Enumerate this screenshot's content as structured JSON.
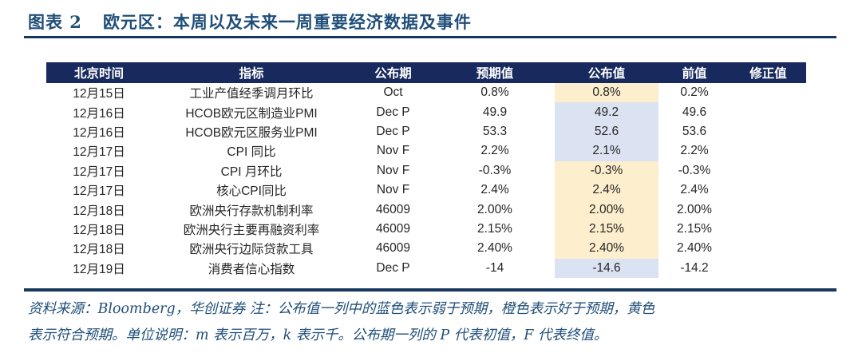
{
  "title": {
    "chart_label": "图表 2",
    "text": "欧元区：本周以及未来一周重要经济数据及事件"
  },
  "colors": {
    "header_bg": "#182a5d",
    "rule": "#17375e",
    "title_text": "#1f4e79",
    "footnote_text": "#1f4e79",
    "highlight_meets_expectation_yellow": "#fdeecd",
    "highlight_below_expectation_blue": "#dbe2f1",
    "cell_text": "#262626"
  },
  "table": {
    "columns": [
      "北京时间",
      "指标",
      "公布期",
      "预期值",
      "公布值",
      "前值",
      "修正值"
    ],
    "rows": [
      {
        "date": "12月15日",
        "indicator": "工业产值经季调月环比",
        "period": "Oct",
        "expected": "0.8%",
        "actual": "0.8%",
        "actual_highlight": "yellow",
        "previous": "0.2%",
        "revised": ""
      },
      {
        "date": "12月16日",
        "indicator": "HCOB欧元区制造业PMI",
        "period": "Dec P",
        "expected": "49.9",
        "actual": "49.2",
        "actual_highlight": "blue",
        "previous": "49.6",
        "revised": ""
      },
      {
        "date": "12月16日",
        "indicator": "HCOB欧元区服务业PMI",
        "period": "Dec P",
        "expected": "53.3",
        "actual": "52.6",
        "actual_highlight": "blue",
        "previous": "53.6",
        "revised": ""
      },
      {
        "date": "12月17日",
        "indicator": "CPI 同比",
        "period": "Nov F",
        "expected": "2.2%",
        "actual": "2.1%",
        "actual_highlight": "blue",
        "previous": "2.2%",
        "revised": ""
      },
      {
        "date": "12月17日",
        "indicator": "CPI 月环比",
        "period": "Nov F",
        "expected": "-0.3%",
        "actual": "-0.3%",
        "actual_highlight": "yellow",
        "previous": "-0.3%",
        "revised": ""
      },
      {
        "date": "12月17日",
        "indicator": "核心CPI同比",
        "period": "Nov F",
        "expected": "2.4%",
        "actual": "2.4%",
        "actual_highlight": "yellow",
        "previous": "2.4%",
        "revised": ""
      },
      {
        "date": "12月18日",
        "indicator": "欧洲央行存款机制利率",
        "period": "46009",
        "expected": "2.00%",
        "actual": "2.00%",
        "actual_highlight": "yellow",
        "previous": "2.00%",
        "revised": ""
      },
      {
        "date": "12月18日",
        "indicator": "欧洲央行主要再融资利率",
        "period": "46009",
        "expected": "2.15%",
        "actual": "2.15%",
        "actual_highlight": "yellow",
        "previous": "2.15%",
        "revised": ""
      },
      {
        "date": "12月18日",
        "indicator": "欧洲央行边际贷款工具",
        "period": "46009",
        "expected": "2.40%",
        "actual": "2.40%",
        "actual_highlight": "yellow",
        "previous": "2.40%",
        "revised": ""
      },
      {
        "date": "12月19日",
        "indicator": "消费者信心指数",
        "period": "Dec P",
        "expected": "-14",
        "actual": "-14.6",
        "actual_highlight": "blue",
        "previous": "-14.2",
        "revised": ""
      }
    ]
  },
  "footnote": {
    "line1": "资料来源：Bloomberg，华创证券 注：公布值一列中的蓝色表示弱于预期，橙色表示好于预期，黄色",
    "line2": "表示符合预期。单位说明：m 表示百万，k 表示千。公布期一列的 P 代表初值，F 代表终值。"
  }
}
